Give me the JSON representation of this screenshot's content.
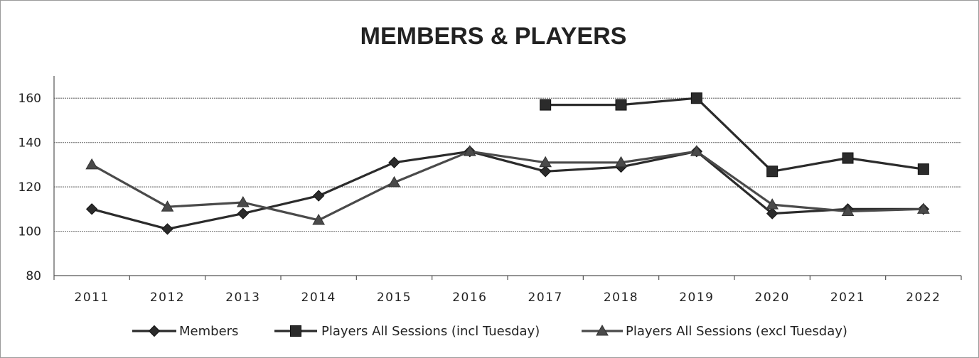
{
  "chart_data": {
    "type": "line",
    "title": "MEMBERS & PLAYERS",
    "xlabel": "",
    "ylabel": "",
    "categories": [
      "2011",
      "2012",
      "2013",
      "2014",
      "2015",
      "2016",
      "2017",
      "2018",
      "2019",
      "2020",
      "2021",
      "2022"
    ],
    "ylim": [
      80,
      170
    ],
    "yticks": [
      "80",
      "100",
      "120",
      "140",
      "160"
    ],
    "grid": true,
    "legend_position": "bottom",
    "series": [
      {
        "name": "Members",
        "marker": "diamond",
        "color": "#2b2b2b",
        "values": [
          110,
          101,
          108,
          116,
          131,
          136,
          127,
          129,
          136,
          108,
          110,
          110
        ]
      },
      {
        "name": "Players All Sessions (incl Tuesday)",
        "marker": "square",
        "color": "#2b2b2b",
        "values": [
          null,
          null,
          null,
          null,
          null,
          null,
          157,
          157,
          160,
          127,
          133,
          128
        ]
      },
      {
        "name": "Players All Sessions (excl Tuesday)",
        "marker": "triangle",
        "color": "#4a4a4a",
        "values": [
          130,
          111,
          113,
          105,
          122,
          136,
          131,
          131,
          136,
          112,
          109,
          110
        ]
      }
    ]
  }
}
